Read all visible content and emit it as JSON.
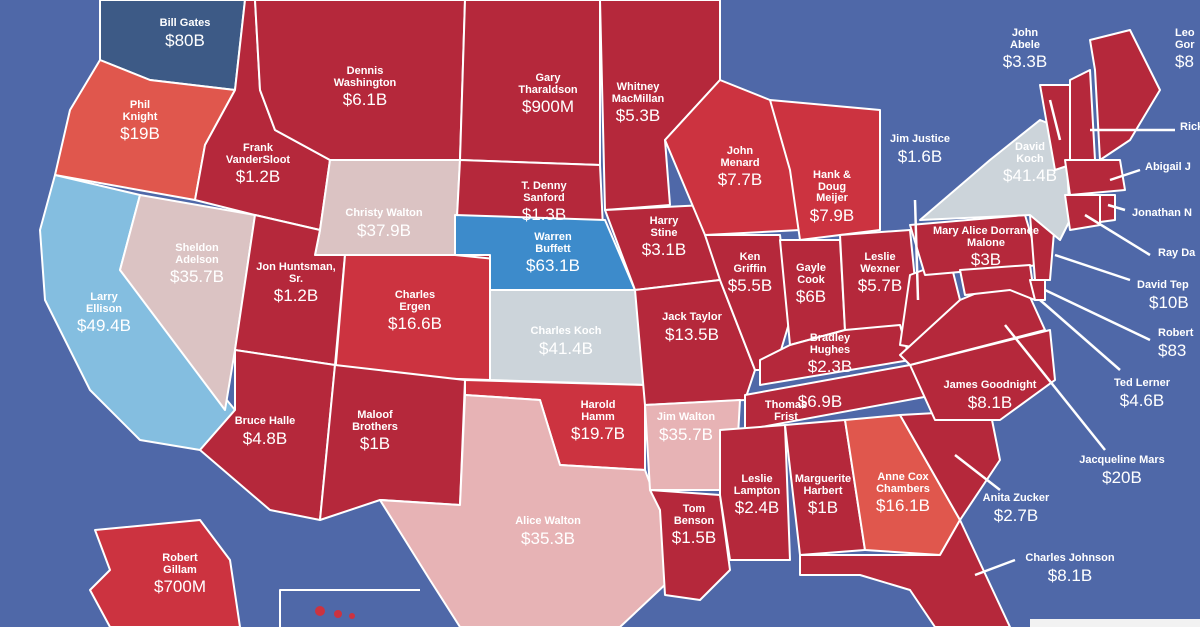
{
  "map": {
    "colors": {
      "ocean": "#4f68a8",
      "dark_red": "#b5283b",
      "red": "#cc3340",
      "light_red": "#e0574d",
      "pink": "#e7b3b5",
      "pale_pink": "#dbc3c3",
      "light_blue": "#84bee0",
      "blue": "#3d8bcb",
      "dark_blue": "#3d5a86",
      "pale_grey": "#ccd4da",
      "border": "#ffffff"
    },
    "regions": [
      {
        "id": "wa",
        "name": "Bill Gates",
        "value": "$80B",
        "fill": "#3d5a86"
      },
      {
        "id": "or",
        "name": "Phil Knight",
        "value": "$19B",
        "fill": "#e0574d"
      },
      {
        "id": "ca",
        "name": "Larry Ellison",
        "value": "$49.4B",
        "fill": "#84bee0"
      },
      {
        "id": "nv",
        "name": "Sheldon Adelson",
        "value": "$35.7B",
        "fill": "#dbc3c3"
      },
      {
        "id": "id",
        "name": "Frank VanderSloot",
        "value": "$1.2B",
        "fill": "#b5283b"
      },
      {
        "id": "mt",
        "name": "Dennis Washington",
        "value": "$6.1B",
        "fill": "#b5283b"
      },
      {
        "id": "wy",
        "name": "Christy Walton",
        "value": "$37.9B",
        "fill": "#dbc3c3"
      },
      {
        "id": "ut",
        "name": "Jon Huntsman, Sr.",
        "value": "$1.2B",
        "fill": "#b5283b"
      },
      {
        "id": "co",
        "name": "Charles Ergen",
        "value": "$16.6B",
        "fill": "#cc3340"
      },
      {
        "id": "az",
        "name": "Bruce Halle",
        "value": "$4.8B",
        "fill": "#b5283b"
      },
      {
        "id": "nm",
        "name": "Maloof Brothers",
        "value": "$1B",
        "fill": "#b5283b"
      },
      {
        "id": "nd",
        "name": "Gary Tharaldson",
        "value": "$900M",
        "fill": "#b5283b"
      },
      {
        "id": "sd",
        "name": "T. Denny Sanford",
        "value": "$1.3B",
        "fill": "#b5283b"
      },
      {
        "id": "ne",
        "name": "Warren Buffett",
        "value": "$63.1B",
        "fill": "#3d8bcb"
      },
      {
        "id": "ks",
        "name": "Charles Koch",
        "value": "$41.4B",
        "fill": "#ccd4da"
      },
      {
        "id": "ok",
        "name": "Harold Hamm",
        "value": "$19.7B",
        "fill": "#cc3340"
      },
      {
        "id": "tx",
        "name": "Alice Walton",
        "value": "$35.3B",
        "fill": "#e7b3b5"
      },
      {
        "id": "mn",
        "name": "Whitney MacMillan",
        "value": "$5.3B",
        "fill": "#b5283b"
      },
      {
        "id": "ia",
        "name": "Harry Stine",
        "value": "$3.1B",
        "fill": "#b5283b"
      },
      {
        "id": "mo",
        "name": "Jack Taylor",
        "value": "$13.5B",
        "fill": "#b5283b"
      },
      {
        "id": "ar",
        "name": "Jim Walton",
        "value": "$35.7B",
        "fill": "#e7b3b5"
      },
      {
        "id": "la",
        "name": "Tom Benson",
        "value": "$1.5B",
        "fill": "#b5283b"
      },
      {
        "id": "wi",
        "name": "John Menard",
        "value": "$7.7B",
        "fill": "#cc3340"
      },
      {
        "id": "il",
        "name": "Ken Griffin",
        "value": "$5.5B",
        "fill": "#b5283b"
      },
      {
        "id": "mi",
        "name": "Hank & Doug Meijer",
        "value": "$7.9B",
        "fill": "#cc3340"
      },
      {
        "id": "in",
        "name": "Gayle Cook",
        "value": "$6B",
        "fill": "#b5283b"
      },
      {
        "id": "oh",
        "name": "Leslie Wexner",
        "value": "$5.7B",
        "fill": "#b5283b"
      },
      {
        "id": "ky",
        "name": "Bradley Hughes",
        "value": "$2.3B",
        "fill": "#b5283b"
      },
      {
        "id": "tn",
        "name": "Thomas Frist",
        "value": "$6.9B",
        "fill": "#b5283b"
      },
      {
        "id": "ms",
        "name": "Leslie Lampton",
        "value": "$2.4B",
        "fill": "#b5283b"
      },
      {
        "id": "al",
        "name": "Marguerite Harbert",
        "value": "$1B",
        "fill": "#b5283b"
      },
      {
        "id": "ga",
        "name": "Anne Cox Chambers",
        "value": "$16.1B",
        "fill": "#e0574d"
      },
      {
        "id": "pa",
        "name": "Mary Alice Dorrance Malone",
        "value": "$3B",
        "fill": "#b5283b"
      },
      {
        "id": "ny",
        "name": "David Koch",
        "value": "$41.4B",
        "fill": "#ccd4da"
      },
      {
        "id": "nc",
        "name": "James Goodnight",
        "value": "$8.1B",
        "fill": "#b5283b"
      },
      {
        "id": "ak",
        "name": "Robert Gillam",
        "value": "$700M",
        "fill": "#cc3340"
      }
    ],
    "callouts": [
      {
        "id": "wv",
        "name": "Jim Justice",
        "value": "$1.6B"
      },
      {
        "id": "vt",
        "name": "John Abele",
        "value": "$3.3B"
      },
      {
        "id": "me",
        "name": "Leo Gor",
        "value": "$8"
      },
      {
        "id": "nh",
        "name": "Rick Co",
        "value": ""
      },
      {
        "id": "ma",
        "name": "Abigail J",
        "value": ""
      },
      {
        "id": "ri",
        "name": "Jonathan N",
        "value": ""
      },
      {
        "id": "ct",
        "name": "Ray Da",
        "value": ""
      },
      {
        "id": "nj",
        "name": "David Tep",
        "value": "$10B"
      },
      {
        "id": "de",
        "name": "Robert",
        "value": "$83"
      },
      {
        "id": "md",
        "name": "Ted Lerner",
        "value": "$4.6B"
      },
      {
        "id": "va",
        "name": "Jacqueline Mars",
        "value": "$20B"
      },
      {
        "id": "sc",
        "name": "Anita Zucker",
        "value": "$2.7B"
      },
      {
        "id": "fl",
        "name": "Charles Johnson",
        "value": "$8.1B"
      }
    ]
  }
}
